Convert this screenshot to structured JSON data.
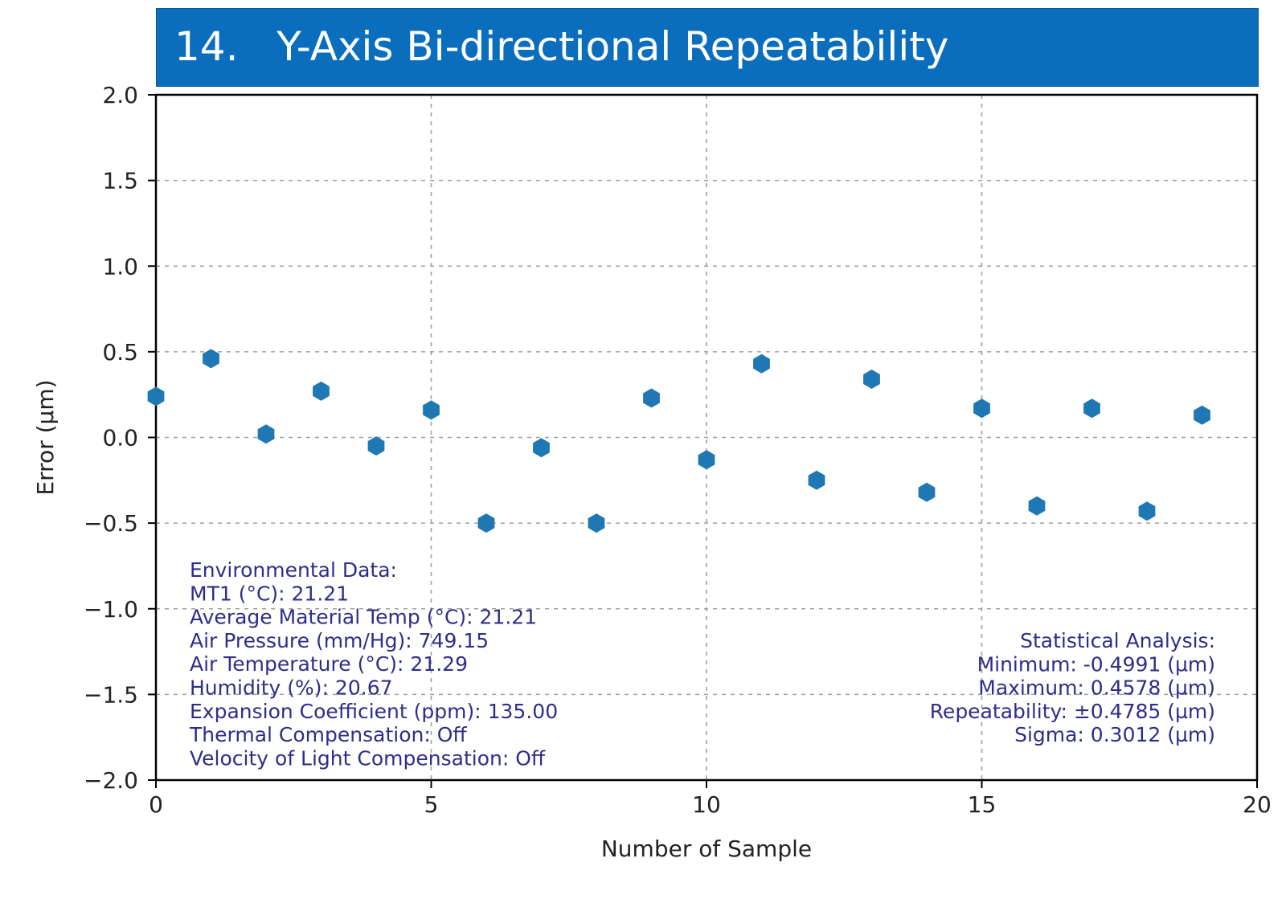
{
  "header": {
    "title": "14.   Y-Axis Bi-directional Repeatability",
    "background_color": "#0a6ebd",
    "text_color": "#ffffff"
  },
  "chart_data": {
    "type": "scatter",
    "xlabel": "Number of Sample",
    "ylabel": "Error (µm)",
    "xlim": [
      0,
      20
    ],
    "ylim": [
      -2.0,
      2.0
    ],
    "x_ticks": [
      0,
      5,
      10,
      15,
      20
    ],
    "x_tick_labels": [
      "0",
      "5",
      "10",
      "15",
      "20"
    ],
    "y_ticks": [
      2.0,
      1.5,
      1.0,
      0.5,
      0.0,
      -0.5,
      -1.0,
      -1.5,
      -2.0
    ],
    "y_tick_labels": [
      "2.0",
      "1.5",
      "1.0",
      "0.5",
      "0.0",
      "−0.5",
      "−1.0",
      "−1.5",
      "−2.0"
    ],
    "grid": true,
    "marker": "hexagon",
    "marker_color": "#1f77b4",
    "annotation_color": "#2e2e8a",
    "series": [
      {
        "x": [
          0,
          1,
          2,
          3,
          4,
          5,
          6,
          7,
          8,
          9,
          10,
          11,
          12,
          13,
          14,
          15,
          16,
          17,
          18,
          19
        ],
        "y": [
          0.24,
          0.46,
          0.02,
          0.27,
          -0.05,
          0.16,
          -0.5,
          -0.06,
          -0.5,
          0.23,
          -0.13,
          0.43,
          -0.25,
          0.34,
          -0.32,
          0.17,
          -0.4,
          0.17,
          -0.43,
          0.13
        ]
      }
    ],
    "environmental_data": [
      "Environmental Data:",
      "MT1 (°C): 21.21",
      "Average Material Temp (°C): 21.21",
      "Air Pressure (mm/Hg): 749.15",
      "Air Temperature (°C): 21.29",
      "Humidity (%): 20.67",
      "Expansion Coefficient (ppm): 135.00",
      "Thermal Compensation: Off",
      "Velocity of Light Compensation: Off"
    ],
    "statistical_analysis": [
      "Statistical Analysis:",
      "Minimum: -0.4991 (µm)",
      "Maximum: 0.4578 (µm)",
      "Repeatability: ±0.4785 (µm)",
      "Sigma: 0.3012 (µm)"
    ]
  }
}
